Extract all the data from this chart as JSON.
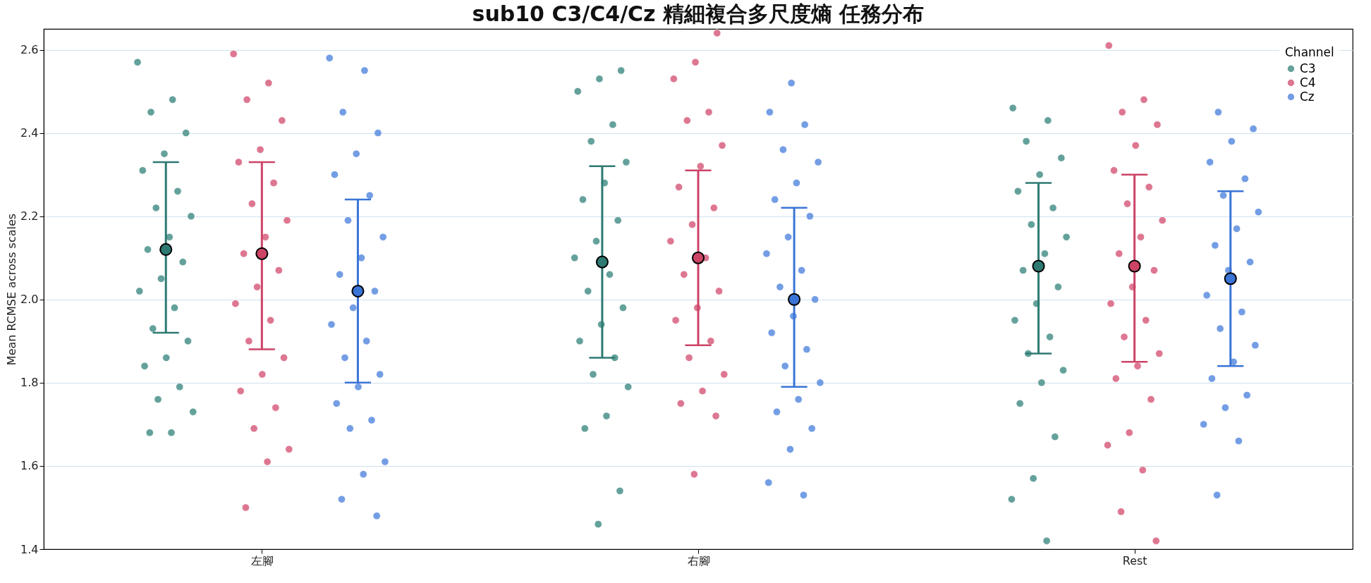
{
  "chart_data": {
    "type": "scatter",
    "title": "sub10 C3/C4/Cz 精細複合多尺度熵 任務分布",
    "ylabel": "Mean RCMSE across scales",
    "legend_title": "Channel",
    "legend": "top right",
    "grid": "y",
    "categories": [
      "左腳",
      "右腳",
      "Rest"
    ],
    "ylim": [
      1.4,
      2.65
    ],
    "yticks": [
      {
        "value": 1.4,
        "label": "1.4"
      },
      {
        "value": 1.6,
        "label": "1.6"
      },
      {
        "value": 1.8,
        "label": "1.8"
      },
      {
        "value": 2,
        "label": "2.0"
      },
      {
        "value": 2.2,
        "label": "2.2"
      },
      {
        "value": 2.4,
        "label": "2.4"
      },
      {
        "value": 2.6,
        "label": "2.6"
      }
    ],
    "series": [
      {
        "name": "C3",
        "color": "#4a918a",
        "x": [
          "左腳",
          "左腳",
          "左腳",
          "左腳",
          "左腳",
          "左腳",
          "左腳",
          "左腳",
          "左腳",
          "左腳",
          "左腳",
          "左腳",
          "左腳",
          "左腳",
          "左腳",
          "左腳",
          "左腳",
          "左腳",
          "左腳",
          "左腳",
          "左腳",
          "左腳",
          "左腳",
          "左腳",
          "右腳",
          "右腳",
          "右腳",
          "右腳",
          "右腳",
          "右腳",
          "右腳",
          "右腳",
          "右腳",
          "右腳",
          "右腳",
          "右腳",
          "右腳",
          "右腳",
          "右腳",
          "右腳",
          "右腳",
          "右腳",
          "右腳",
          "右腳",
          "右腳",
          "右腳",
          "右腳",
          "Rest",
          "Rest",
          "Rest",
          "Rest",
          "Rest",
          "Rest",
          "Rest",
          "Rest",
          "Rest",
          "Rest",
          "Rest",
          "Rest",
          "Rest",
          "Rest",
          "Rest",
          "Rest",
          "Rest",
          "Rest",
          "Rest",
          "Rest",
          "Rest",
          "Rest",
          "Rest"
        ],
        "values": [
          2.57,
          2.48,
          2.45,
          2.4,
          2.35,
          2.31,
          2.26,
          2.22,
          2.2,
          2.15,
          2.12,
          2.09,
          2.05,
          2.02,
          1.98,
          1.93,
          1.9,
          1.86,
          1.84,
          1.79,
          1.76,
          1.73,
          1.68,
          1.68,
          2.55,
          2.53,
          2.5,
          2.42,
          2.38,
          2.33,
          2.28,
          2.24,
          2.19,
          2.14,
          2.1,
          2.06,
          2.02,
          1.98,
          1.94,
          1.9,
          1.86,
          1.82,
          1.79,
          1.72,
          1.69,
          1.54,
          1.46,
          2.46,
          2.43,
          2.38,
          2.34,
          2.3,
          2.26,
          2.22,
          2.18,
          2.15,
          2.11,
          2.07,
          2.03,
          1.99,
          1.95,
          1.91,
          1.87,
          1.83,
          1.8,
          1.75,
          1.67,
          1.57,
          1.52,
          1.42
        ]
      },
      {
        "name": "C4",
        "color": "#d8607e",
        "x": [
          "左腳",
          "左腳",
          "左腳",
          "左腳",
          "左腳",
          "左腳",
          "左腳",
          "左腳",
          "左腳",
          "左腳",
          "左腳",
          "左腳",
          "左腳",
          "左腳",
          "左腳",
          "左腳",
          "左腳",
          "左腳",
          "左腳",
          "左腳",
          "左腳",
          "左腳",
          "左腳",
          "左腳",
          "右腳",
          "右腳",
          "右腳",
          "右腳",
          "右腳",
          "右腳",
          "右腳",
          "右腳",
          "右腳",
          "右腳",
          "右腳",
          "右腳",
          "右腳",
          "右腳",
          "右腳",
          "右腳",
          "右腳",
          "右腳",
          "右腳",
          "右腳",
          "右腳",
          "右腳",
          "右腳",
          "Rest",
          "Rest",
          "Rest",
          "Rest",
          "Rest",
          "Rest",
          "Rest",
          "Rest",
          "Rest",
          "Rest",
          "Rest",
          "Rest",
          "Rest",
          "Rest",
          "Rest",
          "Rest",
          "Rest",
          "Rest",
          "Rest",
          "Rest",
          "Rest",
          "Rest",
          "Rest",
          "Rest",
          "Rest"
        ],
        "values": [
          2.59,
          2.52,
          2.48,
          2.43,
          2.36,
          2.33,
          2.28,
          2.23,
          2.19,
          2.15,
          2.11,
          2.07,
          2.03,
          1.99,
          1.95,
          1.9,
          1.86,
          1.82,
          1.78,
          1.74,
          1.69,
          1.64,
          1.61,
          1.5,
          2.64,
          2.57,
          2.53,
          2.45,
          2.43,
          2.37,
          2.32,
          2.27,
          2.22,
          2.18,
          2.14,
          2.1,
          2.06,
          2.02,
          1.98,
          1.95,
          1.9,
          1.86,
          1.82,
          1.78,
          1.75,
          1.72,
          1.58,
          2.61,
          2.48,
          2.45,
          2.42,
          2.37,
          2.31,
          2.27,
          2.23,
          2.19,
          2.15,
          2.11,
          2.07,
          2.03,
          1.99,
          1.95,
          1.91,
          1.87,
          1.84,
          1.81,
          1.76,
          1.68,
          1.65,
          1.59,
          1.49,
          1.42
        ]
      },
      {
        "name": "Cz",
        "color": "#5b8de0",
        "x": [
          "左腳",
          "左腳",
          "左腳",
          "左腳",
          "左腳",
          "左腳",
          "左腳",
          "左腳",
          "左腳",
          "左腳",
          "左腳",
          "左腳",
          "左腳",
          "左腳",
          "左腳",
          "左腳",
          "左腳",
          "左腳",
          "左腳",
          "左腳",
          "左腳",
          "左腳",
          "左腳",
          "左腳",
          "左腳",
          "右腳",
          "右腳",
          "右腳",
          "右腳",
          "右腳",
          "右腳",
          "右腳",
          "右腳",
          "右腳",
          "右腳",
          "右腳",
          "右腳",
          "右腳",
          "右腳",
          "右腳",
          "右腳",
          "右腳",
          "右腳",
          "右腳",
          "右腳",
          "右腳",
          "右腳",
          "右腳",
          "右腳",
          "Rest",
          "Rest",
          "Rest",
          "Rest",
          "Rest",
          "Rest",
          "Rest",
          "Rest",
          "Rest",
          "Rest",
          "Rest",
          "Rest",
          "Rest",
          "Rest",
          "Rest",
          "Rest",
          "Rest",
          "Rest",
          "Rest",
          "Rest",
          "Rest",
          "Rest"
        ],
        "values": [
          2.58,
          2.55,
          2.45,
          2.4,
          2.35,
          2.3,
          2.25,
          2.19,
          2.15,
          2.1,
          2.06,
          2.02,
          1.98,
          1.94,
          1.9,
          1.86,
          1.82,
          1.79,
          1.75,
          1.71,
          1.69,
          1.61,
          1.58,
          1.52,
          1.48,
          2.52,
          2.45,
          2.42,
          2.36,
          2.33,
          2.28,
          2.24,
          2.2,
          2.15,
          2.11,
          2.07,
          2.03,
          2,
          1.96,
          1.92,
          1.88,
          1.84,
          1.8,
          1.76,
          1.73,
          1.69,
          1.64,
          1.56,
          1.53,
          2.45,
          2.41,
          2.38,
          2.33,
          2.29,
          2.25,
          2.21,
          2.17,
          2.13,
          2.09,
          2.07,
          2.01,
          1.97,
          1.93,
          1.89,
          1.85,
          1.81,
          1.77,
          1.74,
          1.7,
          1.66,
          1.53
        ]
      },
      {
        "color": "#2e7a72",
        "values": [
          2.12,
          2.09,
          2.08
        ],
        "errors": [
          [
            1.92,
            2.33
          ],
          [
            1.86,
            2.32
          ],
          [
            1.87,
            2.28
          ]
        ]
      },
      {
        "color": "#cc4466",
        "values": [
          2.11,
          2.1,
          2.08
        ],
        "errors": [
          [
            1.88,
            2.33
          ],
          [
            1.89,
            2.31
          ],
          [
            1.85,
            2.3
          ]
        ]
      },
      {
        "color": "#3a74d6",
        "values": [
          2.02,
          2,
          2.05
        ],
        "errors": [
          [
            1.8,
            2.24
          ],
          [
            1.79,
            2.22
          ],
          [
            1.84,
            2.26
          ]
        ]
      }
    ]
  }
}
